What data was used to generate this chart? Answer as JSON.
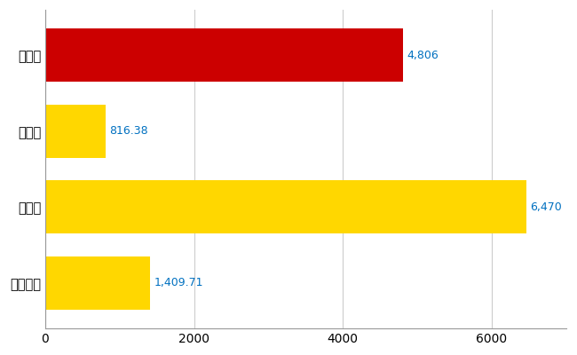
{
  "categories": [
    "全国平均",
    "県最大",
    "県平均",
    "弘前市"
  ],
  "values": [
    1409.71,
    6470,
    816.38,
    4806
  ],
  "bar_colors": [
    "#FFD700",
    "#FFD700",
    "#FFD700",
    "#CC0000"
  ],
  "value_labels": [
    "1,409.71",
    "6,470",
    "816.38",
    "4,806"
  ],
  "xlim": [
    0,
    7000
  ],
  "xticks": [
    0,
    2000,
    4000,
    6000
  ],
  "bar_height": 0.7,
  "label_fontsize": 10.5,
  "tick_fontsize": 10,
  "value_label_fontsize": 9,
  "value_label_color": "#0070C0",
  "grid_color": "#CCCCCC",
  "background_color": "#FFFFFF"
}
